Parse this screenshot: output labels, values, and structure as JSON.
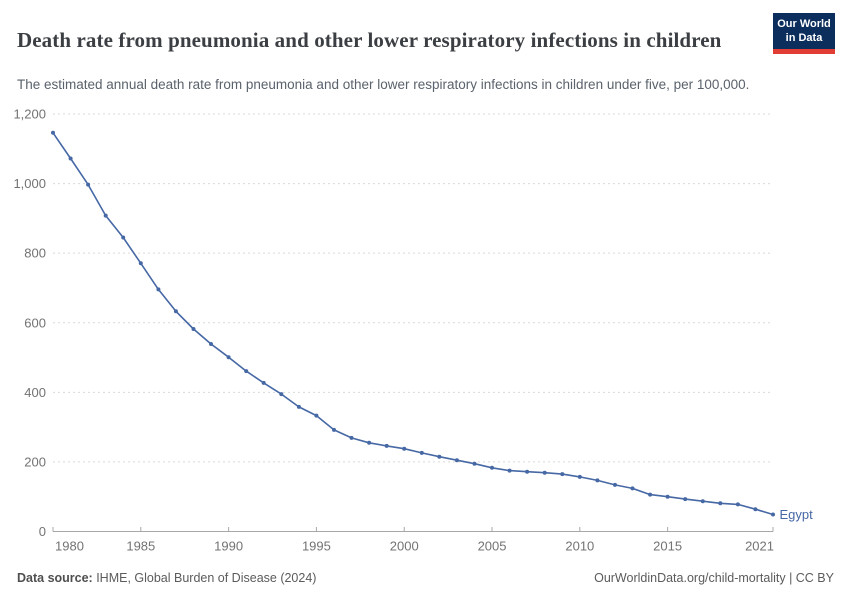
{
  "header": {
    "logo": {
      "line1": "Our World",
      "line2": "in Data"
    }
  },
  "footer": {
    "source_label": "Data source:",
    "source_value": " IHME, Global Burden of Disease (2024)",
    "credit": "OurWorldinData.org/child-mortality | CC BY"
  },
  "colors": {
    "line": "#4668a5",
    "grid": "#d9d9d9",
    "axis": "#a8a8a8",
    "tick_label": "#737373",
    "logo_bg": "#0c2e5c",
    "logo_stripe": "#e23d34"
  },
  "chart_data": {
    "type": "line",
    "title": "Death rate from pneumonia and other lower respiratory infections in children",
    "subtitle": "The estimated annual death rate from pneumonia and other lower respiratory infections in children under five, per 100,000.",
    "xlabel": "",
    "ylabel": "",
    "xlim": [
      1980,
      2021
    ],
    "ylim": [
      0,
      1200
    ],
    "x_ticks": [
      1980,
      1985,
      1990,
      1995,
      2000,
      2005,
      2010,
      2015,
      2021
    ],
    "y_ticks": [
      0,
      200,
      400,
      600,
      800,
      1000,
      1200
    ],
    "grid": "horizontal-dashed",
    "legend_position": "end-of-line-label",
    "series": [
      {
        "name": "Egypt",
        "x": [
          1980,
          1981,
          1982,
          1983,
          1984,
          1985,
          1986,
          1987,
          1988,
          1989,
          1990,
          1991,
          1992,
          1993,
          1994,
          1995,
          1996,
          1997,
          1998,
          1999,
          2000,
          2001,
          2002,
          2003,
          2004,
          2005,
          2006,
          2007,
          2008,
          2009,
          2010,
          2011,
          2012,
          2013,
          2014,
          2015,
          2016,
          2017,
          2018,
          2019,
          2020,
          2021
        ],
        "values": [
          1146,
          1072,
          997,
          908,
          845,
          771,
          696,
          633,
          582,
          539,
          501,
          461,
          427,
          395,
          358,
          333,
          292,
          269,
          255,
          246,
          238,
          226,
          215,
          205,
          195,
          183,
          175,
          172,
          169,
          165,
          157,
          147,
          134,
          124,
          106,
          100,
          93,
          87,
          81,
          78,
          64,
          49
        ]
      }
    ]
  }
}
